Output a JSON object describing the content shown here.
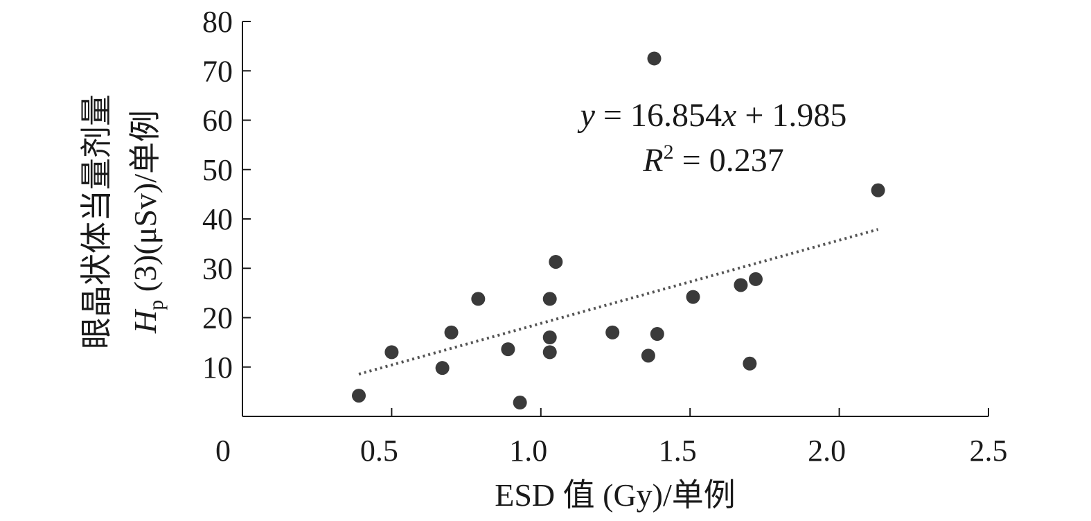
{
  "chart_data": {
    "type": "scatter",
    "xlabel": "ESD 值 (Gy)/单例",
    "ylabel_line1": "眼晶状体当量剂量",
    "ylabel_line2_prefix": "H",
    "ylabel_line2_sub": "p",
    "ylabel_line2_rest": " (3)(μSv)/单例",
    "xlim": [
      0,
      2.5
    ],
    "ylim": [
      0,
      80
    ],
    "x_ticks": [
      0,
      0.5,
      1.0,
      1.5,
      2.0,
      2.5
    ],
    "x_tick_labels": [
      "0",
      "0.5",
      "1.0",
      "1.5",
      "2.0",
      "2.5"
    ],
    "y_ticks": [
      10,
      20,
      30,
      40,
      50,
      60,
      70,
      80
    ],
    "y_tick_labels": [
      "10",
      "20",
      "30",
      "40",
      "50",
      "60",
      "70",
      "80"
    ],
    "points": [
      {
        "x": 0.39,
        "y": 4.2
      },
      {
        "x": 0.5,
        "y": 13.0
      },
      {
        "x": 0.67,
        "y": 9.8
      },
      {
        "x": 0.7,
        "y": 17.0
      },
      {
        "x": 0.79,
        "y": 23.8
      },
      {
        "x": 0.89,
        "y": 13.6
      },
      {
        "x": 0.93,
        "y": 2.8
      },
      {
        "x": 1.03,
        "y": 23.8
      },
      {
        "x": 1.03,
        "y": 16.0
      },
      {
        "x": 1.03,
        "y": 13.0
      },
      {
        "x": 1.05,
        "y": 31.3
      },
      {
        "x": 1.24,
        "y": 17.0
      },
      {
        "x": 1.36,
        "y": 12.3
      },
      {
        "x": 1.38,
        "y": 72.5
      },
      {
        "x": 1.39,
        "y": 16.7
      },
      {
        "x": 1.51,
        "y": 24.2
      },
      {
        "x": 1.67,
        "y": 26.6
      },
      {
        "x": 1.7,
        "y": 10.7
      },
      {
        "x": 1.72,
        "y": 27.8
      },
      {
        "x": 2.13,
        "y": 45.8
      }
    ],
    "trendline": {
      "slope": 16.854,
      "intercept": 1.985,
      "x_range": [
        0.39,
        2.13
      ],
      "equation_y": "y",
      "equation_mid": " = 16.854",
      "equation_x": "x",
      "equation_end": " + 1.985",
      "r2_R": "R",
      "r2_sup": "2",
      "r2_rest": " = 0.237"
    }
  }
}
